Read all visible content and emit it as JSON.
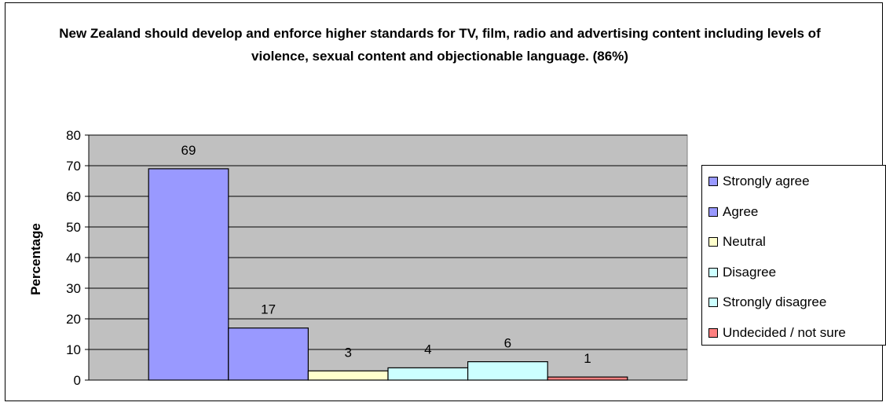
{
  "chart_data": {
    "type": "bar",
    "title": "New Zealand should develop and enforce higher standards for TV, film, radio and advertising content including levels of violence, sexual content and objectionable language. (86%)",
    "ylabel": "Percentage",
    "xlabel": "",
    "ylim": [
      0,
      80
    ],
    "yticks": [
      "0",
      "10",
      "20",
      "30",
      "40",
      "50",
      "60",
      "70",
      "80"
    ],
    "grid": true,
    "legend_position": "right",
    "series": [
      {
        "name": "Strongly agree",
        "value": 69,
        "label": "69",
        "color": "#9999ff"
      },
      {
        "name": "Agree",
        "value": 17,
        "label": "17",
        "color": "#9999ff"
      },
      {
        "name": "Neutral",
        "value": 3,
        "label": "3",
        "color": "#ffffcc"
      },
      {
        "name": "Disagree",
        "value": 4,
        "label": "4",
        "color": "#ccffff"
      },
      {
        "name": "Strongly disagree",
        "value": 6,
        "label": "6",
        "color": "#ccffff"
      },
      {
        "name": "Undecided / not sure",
        "value": 1,
        "label": "1",
        "color": "#ff8080"
      }
    ],
    "plot_background": "#c0c0c0"
  }
}
